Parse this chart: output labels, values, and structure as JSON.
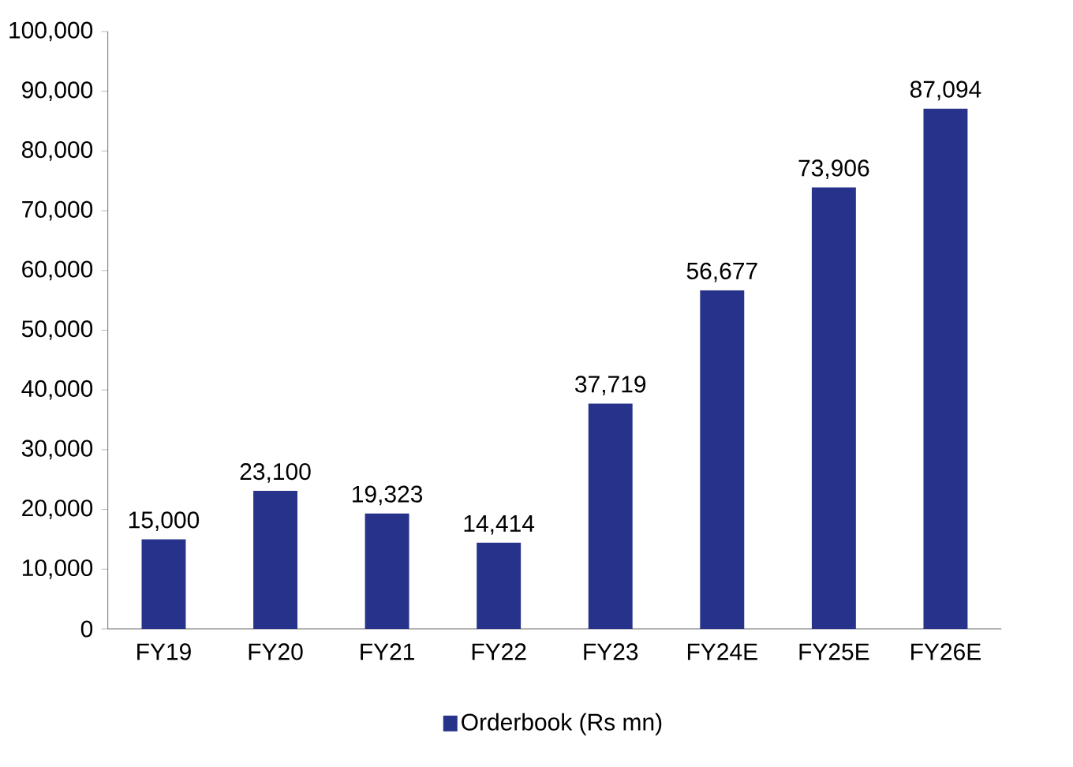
{
  "chart_data": {
    "type": "bar",
    "categories": [
      "FY19",
      "FY20",
      "FY21",
      "FY22",
      "FY23",
      "FY24E",
      "FY25E",
      "FY26E"
    ],
    "series": [
      {
        "name": "Orderbook (Rs mn)",
        "color": "#27338a",
        "values": [
          15000,
          23100,
          19323,
          14414,
          37719,
          56677,
          73906,
          87094
        ],
        "value_labels": [
          "15,000",
          "23,100",
          "19,323",
          "14,414",
          "37,719",
          "56,677",
          "73,906",
          "87,094"
        ]
      }
    ],
    "ylim": [
      0,
      100000
    ],
    "yticks": [
      {
        "value": 0,
        "label": "0"
      },
      {
        "value": 10000,
        "label": "10,000"
      },
      {
        "value": 20000,
        "label": "20,000"
      },
      {
        "value": 30000,
        "label": "30,000"
      },
      {
        "value": 40000,
        "label": "40,000"
      },
      {
        "value": 50000,
        "label": "50,000"
      },
      {
        "value": 60000,
        "label": "60,000"
      },
      {
        "value": 70000,
        "label": "70,000"
      },
      {
        "value": 80000,
        "label": "80,000"
      },
      {
        "value": 90000,
        "label": "90,000"
      },
      {
        "value": 100000,
        "label": "100,000"
      }
    ],
    "grid": false,
    "legend": "bottom"
  }
}
